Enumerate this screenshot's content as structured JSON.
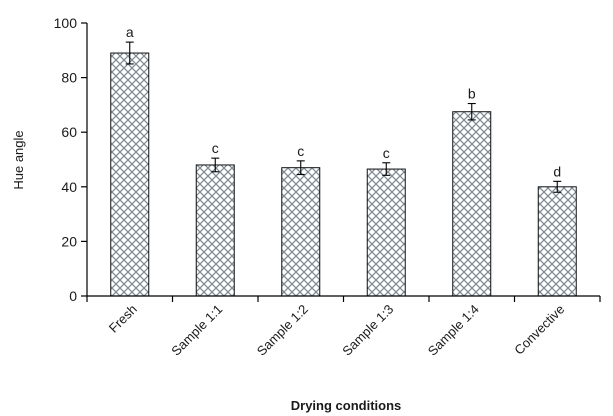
{
  "chart_data": {
    "type": "bar",
    "title": "",
    "xlabel": "Drying conditions",
    "ylabel": "Hue angle",
    "ylim": [
      0,
      100
    ],
    "yticks": [
      0,
      20,
      40,
      60,
      80,
      100
    ],
    "grid": false,
    "categories": [
      "Fresh",
      "Sample 1:1",
      "Sample 1:2",
      "Sample 1:3",
      "Sample 1:4",
      "Convective"
    ],
    "values": [
      89,
      48,
      47,
      46.5,
      67.5,
      40
    ],
    "errors": [
      4,
      2.5,
      2.5,
      2.3,
      3,
      2
    ],
    "significance_labels": [
      "a",
      "c",
      "c",
      "c",
      "b",
      "d"
    ],
    "bar_pattern": "crosshatch",
    "colors": {
      "bar_pattern": "#7f8c96",
      "bar_edge": "#111111",
      "axis": "#000000",
      "background": "#ffffff"
    }
  }
}
